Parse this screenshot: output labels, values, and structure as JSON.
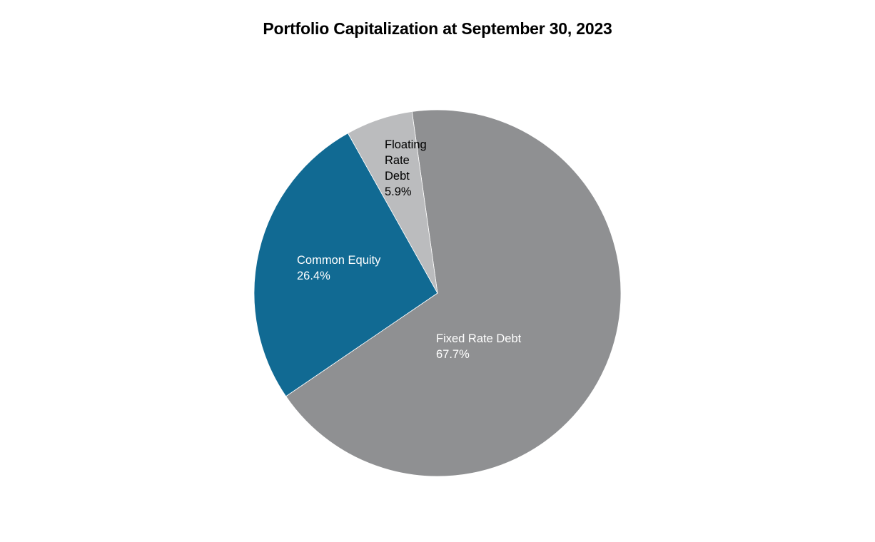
{
  "chart_data": {
    "type": "pie",
    "title": "Portfolio Capitalization at September 30, 2023",
    "start_angle_deg": -8,
    "slices": [
      {
        "label": "Fixed Rate Debt",
        "value": 67.7,
        "display": "67.7%",
        "color": "#8f9092",
        "text_color": "#ffffff"
      },
      {
        "label": "Common Equity",
        "value": 26.4,
        "display": "26.4%",
        "color": "#116a93",
        "text_color": "#ffffff"
      },
      {
        "label": "Floating Rate Debt",
        "value": 5.9,
        "display": "5.9%",
        "color": "#bbbcbe",
        "text_color": "#000000"
      }
    ],
    "legend": "none",
    "data_labels": "inside"
  },
  "labels": {
    "fixed": {
      "line1": "Fixed Rate Debt",
      "line2": "67.7%"
    },
    "common": {
      "line1": "Common Equity",
      "line2": "26.4%"
    },
    "floating": {
      "line1": "Floating",
      "line2": "Rate",
      "line3": "Debt",
      "line4": "5.9%"
    }
  }
}
